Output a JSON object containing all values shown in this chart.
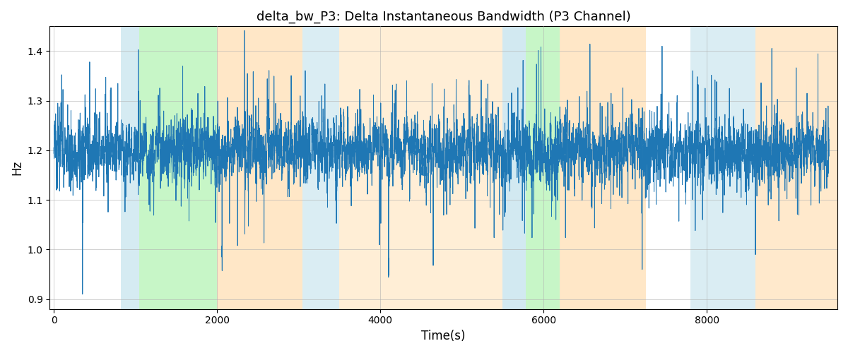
{
  "title": "delta_bw_P3: Delta Instantaneous Bandwidth (P3 Channel)",
  "xlabel": "Time(s)",
  "ylabel": "Hz",
  "ylim": [
    0.88,
    1.45
  ],
  "xlim": [
    -50,
    9600
  ],
  "yticks": [
    0.9,
    1.0,
    1.1,
    1.2,
    1.3,
    1.4
  ],
  "xticks": [
    0,
    2000,
    4000,
    6000,
    8000
  ],
  "line_color": "#1f77b4",
  "line_width": 0.7,
  "grid_color": "#b0b0b0",
  "background_color": "#ffffff",
  "signal_mean": 1.2,
  "signal_std": 0.03,
  "spike_std": 0.07,
  "spike_prob": 0.08,
  "signal_n": 9500,
  "seed": 12345,
  "colored_bands": [
    {
      "xmin": 820,
      "xmax": 1050,
      "color": "#add8e6",
      "alpha": 0.5
    },
    {
      "xmin": 1050,
      "xmax": 2000,
      "color": "#90ee90",
      "alpha": 0.5
    },
    {
      "xmin": 2000,
      "xmax": 3050,
      "color": "#ffd59a",
      "alpha": 0.55
    },
    {
      "xmin": 3050,
      "xmax": 3500,
      "color": "#add8e6",
      "alpha": 0.45
    },
    {
      "xmin": 3500,
      "xmax": 5500,
      "color": "#ffd59a",
      "alpha": 0.4
    },
    {
      "xmin": 5500,
      "xmax": 5780,
      "color": "#add8e6",
      "alpha": 0.55
    },
    {
      "xmin": 5780,
      "xmax": 6200,
      "color": "#90ee90",
      "alpha": 0.5
    },
    {
      "xmin": 6200,
      "xmax": 7250,
      "color": "#ffd59a",
      "alpha": 0.55
    },
    {
      "xmin": 7800,
      "xmax": 8600,
      "color": "#add8e6",
      "alpha": 0.45
    },
    {
      "xmin": 8600,
      "xmax": 9600,
      "color": "#ffd59a",
      "alpha": 0.5
    }
  ]
}
